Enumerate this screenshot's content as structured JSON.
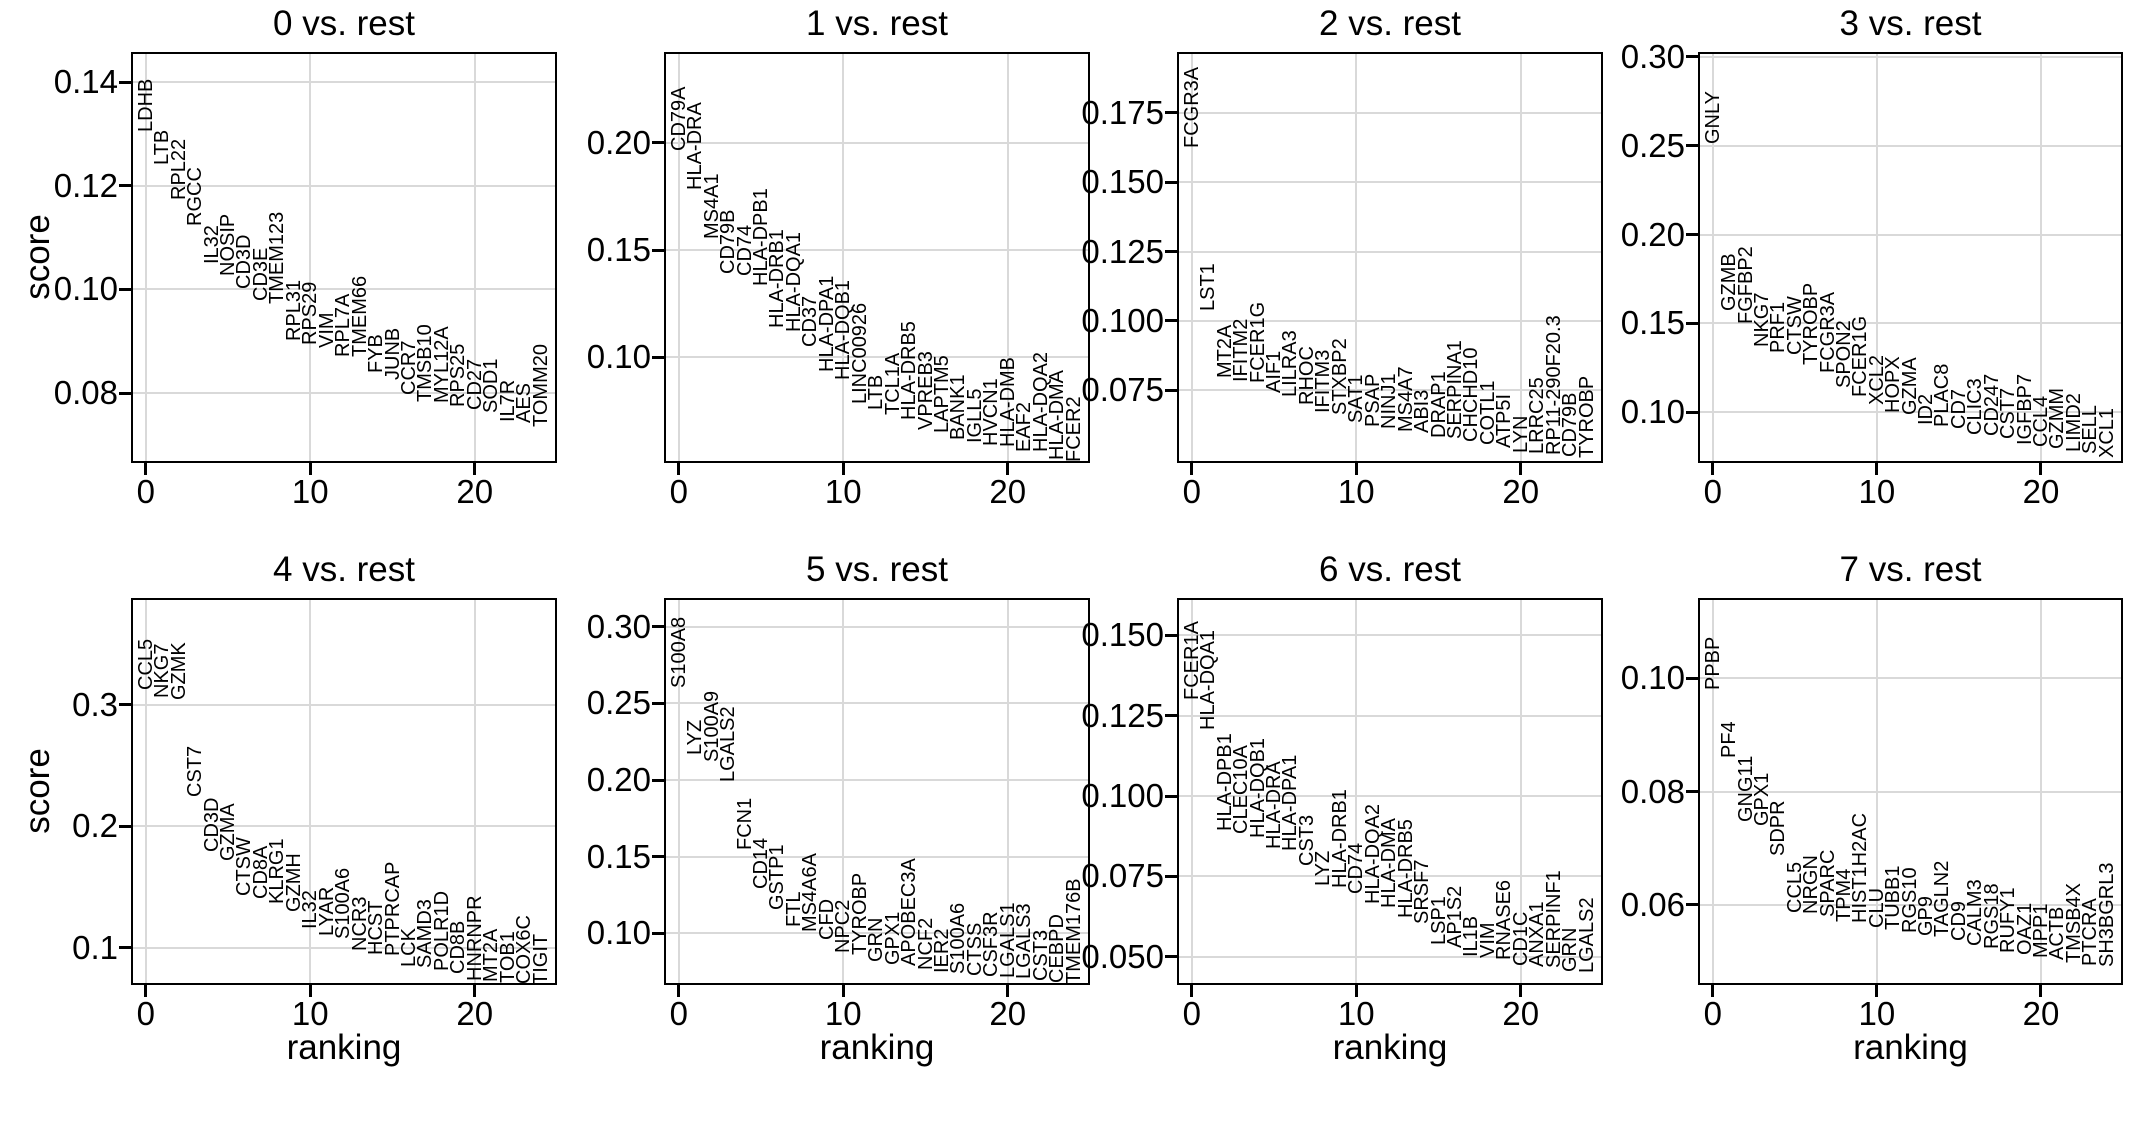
{
  "figure": {
    "ylabel": "score",
    "xlabel": "ranking",
    "grid_color": "#d9d9d9",
    "frame_color": "#000000",
    "text_color": "#000000",
    "background_color": "#ffffff"
  },
  "chart_data": [
    {
      "type": "scatter",
      "title": "0 vs. rest",
      "xlabel": "",
      "ylabel": "score",
      "xlim": [
        -0.9,
        25.0
      ],
      "ylim": [
        0.0665,
        0.1458
      ],
      "xticks": [
        0,
        10,
        20
      ],
      "xtick_labels": [
        "0",
        "10",
        "20"
      ],
      "ytick_values": [
        0.14,
        0.12,
        0.1,
        0.08
      ],
      "ytick_labels": [
        "0.14",
        "0.12",
        "0.10",
        "0.08"
      ],
      "grid": true,
      "genes": [
        "LDHB",
        "LTB",
        "RPL22",
        "RGCC",
        "IL32",
        "NOSIP",
        "CD3D",
        "CD3E",
        "TMEM123",
        "RPL31",
        "RPS29",
        "VIM",
        "RPL7A",
        "TMEM66",
        "FYB",
        "JUNB",
        "CCR7",
        "TMSB10",
        "MYL12A",
        "RPS25",
        "CD27",
        "SOD1",
        "IL7R",
        "AES",
        "TOMM20"
      ],
      "scores": [
        0.1304,
        0.124,
        0.1173,
        0.1123,
        0.1048,
        0.1025,
        0.1,
        0.0977,
        0.0971,
        0.09,
        0.0893,
        0.0886,
        0.087,
        0.0869,
        0.0838,
        0.0825,
        0.0796,
        0.0783,
        0.078,
        0.0773,
        0.0767,
        0.0761,
        0.0744,
        0.0742,
        0.0734
      ]
    },
    {
      "type": "scatter",
      "title": "1 vs. rest",
      "xlabel": "",
      "ylabel": "",
      "xlim": [
        -0.9,
        25.0
      ],
      "ylim": [
        0.0507,
        0.2424
      ],
      "xticks": [
        0,
        10,
        20
      ],
      "xtick_labels": [
        "0",
        "10",
        "20"
      ],
      "ytick_values": [
        0.2,
        0.15,
        0.1
      ],
      "ytick_labels": [
        "0.20",
        "0.15",
        "0.10"
      ],
      "grid": true,
      "genes": [
        "CD79A",
        "HLA-DRA",
        "MS4A1",
        "CD79B",
        "CD74",
        "HLA-DPB1",
        "HLA-DRB1",
        "HLA-DQA1",
        "CD37",
        "HLA-DPA1",
        "HLA-DQB1",
        "LINC00926",
        "LTB",
        "TCL1A",
        "HLA-DRB5",
        "VPREB3",
        "LAPTM5",
        "BANK1",
        "IGLL5",
        "HVCN1",
        "HLA-DMB",
        "EAF2",
        "HLA-DQA2",
        "HLA-DMA",
        "FCER2"
      ],
      "scores": [
        0.196,
        0.178,
        0.155,
        0.1387,
        0.138,
        0.1334,
        0.1135,
        0.112,
        0.105,
        0.0932,
        0.0896,
        0.078,
        0.0752,
        0.073,
        0.0707,
        0.066,
        0.0648,
        0.0616,
        0.0602,
        0.0584,
        0.058,
        0.056,
        0.0557,
        0.052,
        0.051
      ]
    },
    {
      "type": "scatter",
      "title": "2 vs. rest",
      "xlabel": "",
      "ylabel": "",
      "xlim": [
        -0.9,
        25.0
      ],
      "ylim": [
        0.0487,
        0.197
      ],
      "xticks": [
        0,
        10,
        20
      ],
      "xtick_labels": [
        "0",
        "10",
        "20"
      ],
      "ytick_values": [
        0.175,
        0.15,
        0.125,
        0.1,
        0.075
      ],
      "ytick_labels": [
        "0.175",
        "0.150",
        "0.125",
        "0.100",
        "0.075"
      ],
      "grid": true,
      "genes": [
        "FCGR3A",
        "LST1",
        "MT2A",
        "IFITM2",
        "FCER1G",
        "AIF1",
        "LILRA3",
        "RHOC",
        "IFITM3",
        "STXBP2",
        "SAT1",
        "PSAP",
        "NINJ1",
        "MS4A7",
        "ABI3",
        "DRAP1",
        "SERPINA1",
        "CHCHD10",
        "COTL1",
        "ATP5I",
        "LYN",
        "LRRC25",
        "RP11-290F20.3",
        "CD79B",
        "TYROBP"
      ],
      "scores": [
        0.1624,
        0.1036,
        0.0793,
        0.0779,
        0.0775,
        0.0739,
        0.0725,
        0.0696,
        0.0667,
        0.066,
        0.0631,
        0.0617,
        0.0609,
        0.0598,
        0.0595,
        0.0577,
        0.0573,
        0.0563,
        0.0552,
        0.0541,
        0.0523,
        0.052,
        0.0516,
        0.0509,
        0.0505
      ]
    },
    {
      "type": "scatter",
      "title": "3 vs. rest",
      "xlabel": "",
      "ylabel": "",
      "xlim": [
        -0.9,
        25.0
      ],
      "ylim": [
        0.0713,
        0.3028
      ],
      "xticks": [
        0,
        10,
        20
      ],
      "xtick_labels": [
        "0",
        "10",
        "20"
      ],
      "ytick_values": [
        0.3,
        0.25,
        0.2,
        0.15,
        0.1
      ],
      "ytick_labels": [
        "0.30",
        "0.25",
        "0.20",
        "0.15",
        "0.10"
      ],
      "grid": true,
      "genes": [
        "GNLY",
        "GZMB",
        "FGFBP2",
        "NKG7",
        "PRF1",
        "CTSW",
        "TYROBP",
        "FCGR3A",
        "SPON2",
        "FCER1G",
        "XCL2",
        "HOPX",
        "GZMA",
        "ID2",
        "PLAC8",
        "CD7",
        "CLIC3",
        "CD247",
        "CST7",
        "IGFBP7",
        "CCL4",
        "GZMM",
        "LIMD2",
        "SELL",
        "XCL1"
      ],
      "scores": [
        0.2511,
        0.1568,
        0.1494,
        0.1366,
        0.1332,
        0.1321,
        0.1265,
        0.122,
        0.1135,
        0.1085,
        0.104,
        0.0994,
        0.0983,
        0.0927,
        0.0916,
        0.0904,
        0.087,
        0.0865,
        0.0848,
        0.0814,
        0.0803,
        0.0791,
        0.0774,
        0.0763,
        0.074
      ]
    },
    {
      "type": "scatter",
      "title": "4 vs. rest",
      "xlabel": "ranking",
      "ylabel": "score",
      "xlim": [
        -0.9,
        25.0
      ],
      "ylim": [
        0.0695,
        0.388
      ],
      "xticks": [
        0,
        10,
        20
      ],
      "xtick_labels": [
        "0",
        "10",
        "20"
      ],
      "ytick_values": [
        0.3,
        0.2,
        0.1
      ],
      "ytick_labels": [
        "0.3",
        "0.2",
        "0.1"
      ],
      "grid": true,
      "genes": [
        "CCL5",
        "NKG7",
        "GZMK",
        "CST7",
        "CD3D",
        "GZMA",
        "CTSW",
        "CD8A",
        "KLRG1",
        "GZMH",
        "IL32",
        "LYAR",
        "S100A6",
        "NCR3",
        "HCST",
        "PTPRCAP",
        "LCK",
        "SAMD3",
        "POLR1D",
        "CD8B",
        "HNRNPR",
        "MT2A",
        "TOB1",
        "COX6C",
        "TIGIT"
      ],
      "scores": [
        0.3123,
        0.3058,
        0.304,
        0.2243,
        0.1786,
        0.1712,
        0.1424,
        0.14,
        0.1358,
        0.1292,
        0.1152,
        0.1095,
        0.107,
        0.0971,
        0.0946,
        0.093,
        0.0846,
        0.0838,
        0.0807,
        0.0782,
        0.0725,
        0.0717,
        0.0708,
        0.0702,
        0.0698
      ]
    },
    {
      "type": "scatter",
      "title": "5 vs. rest",
      "xlabel": "ranking",
      "ylabel": "",
      "xlim": [
        -0.9,
        25.0
      ],
      "ylim": [
        0.0661,
        0.3189
      ],
      "xticks": [
        0,
        10,
        20
      ],
      "xtick_labels": [
        "0",
        "10",
        "20"
      ],
      "ytick_values": [
        0.3,
        0.25,
        0.2,
        0.15,
        0.1
      ],
      "ytick_labels": [
        "0.30",
        "0.25",
        "0.20",
        "0.15",
        "0.10"
      ],
      "grid": true,
      "genes": [
        "S100A8",
        "LYZ",
        "S100A9",
        "LGALS2",
        "FCN1",
        "CD14",
        "GSTP1",
        "FTL",
        "MS4A6A",
        "CFD",
        "NPC2",
        "TYROBP",
        "GRN",
        "GPX1",
        "APOBEC3A",
        "NCF2",
        "IER2",
        "S100A6",
        "CTSS",
        "CSF3R",
        "LGALS1",
        "LGALS3",
        "CST3",
        "CEBPD",
        "TMEM176B"
      ],
      "scores": [
        0.2602,
        0.2161,
        0.2115,
        0.1987,
        0.1546,
        0.1285,
        0.1154,
        0.104,
        0.1007,
        0.0954,
        0.0869,
        0.0856,
        0.081,
        0.079,
        0.0784,
        0.0758,
        0.0738,
        0.0732,
        0.0719,
        0.0712,
        0.0706,
        0.0699,
        0.0686,
        0.0673,
        0.0667
      ]
    },
    {
      "type": "scatter",
      "title": "6 vs. rest",
      "xlabel": "ranking",
      "ylabel": "",
      "xlim": [
        -0.9,
        25.0
      ],
      "ylim": [
        0.0413,
        0.1615
      ],
      "xticks": [
        0,
        10,
        20
      ],
      "xtick_labels": [
        "0",
        "10",
        "20"
      ],
      "ytick_values": [
        0.15,
        0.125,
        0.1,
        0.075,
        0.05
      ],
      "ytick_labels": [
        "0.150",
        "0.125",
        "0.100",
        "0.075",
        "0.050"
      ],
      "grid": true,
      "genes": [
        "FCER1A",
        "HLA-DQA1",
        "HLA-DPB1",
        "CLEC10A",
        "HLA-DQB1",
        "HLA-DRA",
        "HLA-DPA1",
        "CST3",
        "LYZ",
        "HLA-DRB1",
        "CD74",
        "HLA-DQA2",
        "HLA-DMA",
        "HLA-DRB5",
        "SRSF7",
        "LSP1",
        "AP1S2",
        "IL1B",
        "VIM",
        "RNASE6",
        "CD1C",
        "ANXA1",
        "SERPINF1",
        "GRN",
        "LGALS2"
      ],
      "scores": [
        0.1298,
        0.1205,
        0.0891,
        0.0882,
        0.087,
        0.0835,
        0.0829,
        0.0783,
        0.0719,
        0.0713,
        0.0697,
        0.0666,
        0.0651,
        0.062,
        0.0604,
        0.0537,
        0.0528,
        0.05,
        0.0497,
        0.0491,
        0.0472,
        0.0469,
        0.0466,
        0.0453,
        0.045
      ]
    },
    {
      "type": "scatter",
      "title": "7 vs. rest",
      "xlabel": "ranking",
      "ylabel": "",
      "xlim": [
        -0.9,
        25.0
      ],
      "ylim": [
        0.0459,
        0.1141
      ],
      "xticks": [
        0,
        10,
        20
      ],
      "xtick_labels": [
        "0",
        "10",
        "20"
      ],
      "ytick_values": [
        0.1,
        0.08,
        0.06
      ],
      "ytick_labels": [
        "0.10",
        "0.08",
        "0.06"
      ],
      "grid": true,
      "genes": [
        "PPBP",
        "PF4",
        "GNG11",
        "GPX1",
        "SDPR",
        "CCL5",
        "NRGN",
        "SPARC",
        "TPM4",
        "HIST1H2AC",
        "CLU",
        "TUBB1",
        "RGS10",
        "GP9",
        "TAGLN2",
        "CD9",
        "CALM3",
        "RGS18",
        "RUFY1",
        "OAZ1",
        "MPP1",
        "ACTB",
        "TMSB4X",
        "PTCRA",
        "SH3BGRL3"
      ],
      "scores": [
        0.0979,
        0.0859,
        0.0747,
        0.074,
        0.0687,
        0.0586,
        0.0584,
        0.0579,
        0.057,
        0.0568,
        0.0559,
        0.0556,
        0.0551,
        0.0545,
        0.0544,
        0.0537,
        0.0528,
        0.0522,
        0.0515,
        0.0512,
        0.0507,
        0.0503,
        0.0497,
        0.0492,
        0.049
      ]
    }
  ]
}
